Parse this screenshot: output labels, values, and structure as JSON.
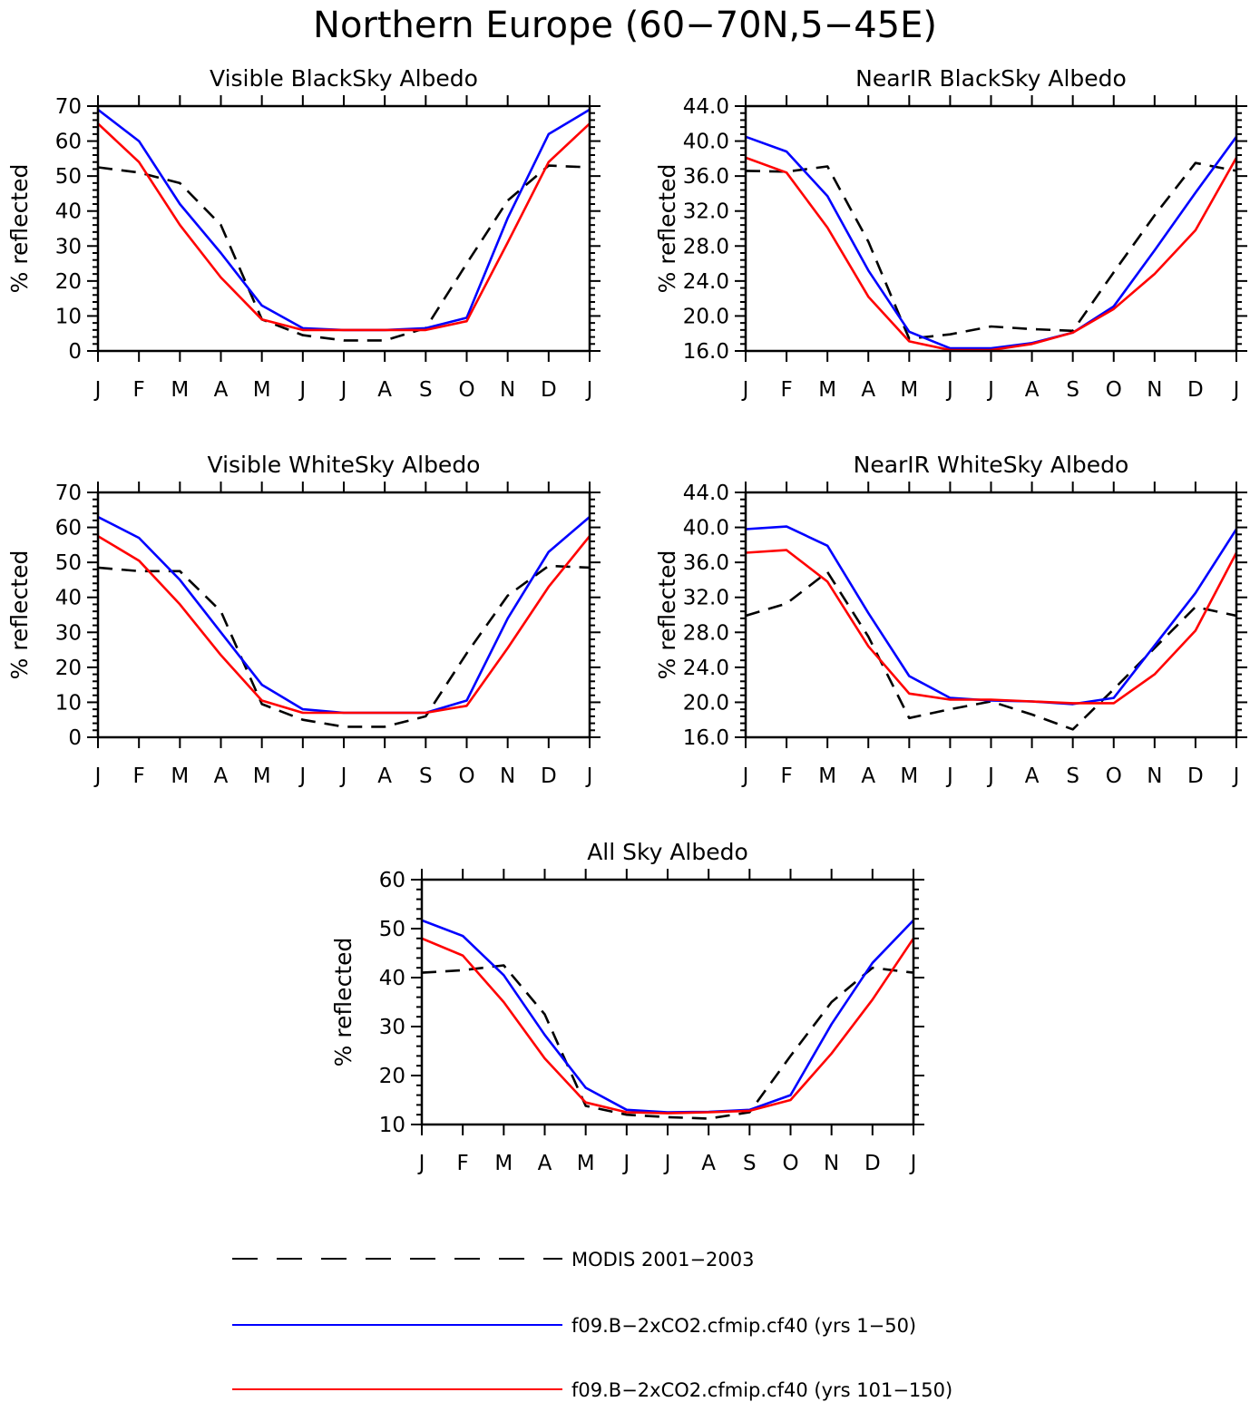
{
  "figure": {
    "title": "Northern Europe (60−70N,5−45E)"
  },
  "colors": {
    "modis": "#000000",
    "run1": "#0000ff",
    "run2": "#ff0000"
  },
  "legend": {
    "placement": "bottom",
    "items": [
      {
        "key": "modis",
        "label": "MODIS 2001−2003",
        "style": "dashed"
      },
      {
        "key": "run1",
        "label": "f09.B−2xCO2.cfmip.cf40 (yrs 1−50)",
        "style": "solid"
      },
      {
        "key": "run2",
        "label": "f09.B−2xCO2.cfmip.cf40 (yrs 101−150)",
        "style": "solid"
      }
    ]
  },
  "chart_data": [
    {
      "type": "line",
      "title": "Visible BlackSky Albedo",
      "ylabel": "% reflected",
      "ylim": [
        0,
        70
      ],
      "yticks": [
        "0",
        "10",
        "20",
        "30",
        "40",
        "50",
        "60",
        "70"
      ],
      "categories": [
        "J",
        "F",
        "M",
        "A",
        "M",
        "J",
        "J",
        "A",
        "S",
        "O",
        "N",
        "D",
        "J"
      ],
      "series": [
        {
          "key": "modis",
          "values": [
            52.5,
            51,
            48,
            36,
            9,
            4.5,
            3,
            3,
            6.5,
            25,
            43,
            53,
            52.5
          ]
        },
        {
          "key": "run1",
          "values": [
            69,
            60,
            42,
            28,
            13,
            6.5,
            6,
            6,
            6.5,
            9.5,
            38,
            62,
            69
          ]
        },
        {
          "key": "run2",
          "values": [
            65,
            54,
            36,
            21,
            9,
            6,
            6,
            6,
            6,
            8.5,
            31,
            54,
            65
          ]
        }
      ]
    },
    {
      "type": "line",
      "title": "NearIR BlackSky Albedo",
      "ylabel": "% reflected",
      "ylim": [
        16,
        44
      ],
      "yticks": [
        "16.0",
        "20.0",
        "24.0",
        "28.0",
        "32.0",
        "36.0",
        "40.0",
        "44.0"
      ],
      "categories": [
        "J",
        "F",
        "M",
        "A",
        "M",
        "J",
        "J",
        "A",
        "S",
        "O",
        "N",
        "D",
        "J"
      ],
      "series": [
        {
          "key": "modis",
          "values": [
            36.6,
            36.5,
            37.1,
            28.5,
            17.4,
            17.9,
            18.8,
            18.5,
            18.3,
            25,
            31.5,
            37.5,
            36.6
          ]
        },
        {
          "key": "run1",
          "values": [
            40.5,
            38.8,
            33.7,
            25.2,
            18.2,
            16.3,
            16.3,
            16.9,
            18.1,
            21.1,
            27.5,
            34.1,
            40.5
          ]
        },
        {
          "key": "run2",
          "values": [
            38.1,
            36.4,
            30.1,
            22.2,
            17.1,
            16.1,
            16.1,
            16.8,
            18.1,
            20.8,
            24.8,
            29.8,
            38.1
          ]
        }
      ]
    },
    {
      "type": "line",
      "title": "Visible WhiteSky Albedo",
      "ylabel": "% reflected",
      "ylim": [
        0,
        70
      ],
      "yticks": [
        "0",
        "10",
        "20",
        "30",
        "40",
        "50",
        "60",
        "70"
      ],
      "categories": [
        "J",
        "F",
        "M",
        "A",
        "M",
        "J",
        "J",
        "A",
        "S",
        "O",
        "N",
        "D",
        "J"
      ],
      "series": [
        {
          "key": "modis",
          "values": [
            48.5,
            47.5,
            47.5,
            36,
            9.5,
            5,
            3,
            3,
            6,
            24,
            40.5,
            49,
            48.5
          ]
        },
        {
          "key": "run1",
          "values": [
            63,
            57,
            45,
            30,
            15,
            8,
            7,
            7,
            7,
            10.5,
            34,
            53,
            63
          ]
        },
        {
          "key": "run2",
          "values": [
            57.5,
            50.5,
            38,
            23.5,
            10.5,
            7,
            7,
            7,
            7,
            9,
            25.5,
            43,
            57.5
          ]
        }
      ]
    },
    {
      "type": "line",
      "title": "NearIR WhiteSky Albedo",
      "ylabel": "% reflected",
      "ylim": [
        16,
        44
      ],
      "yticks": [
        "16.0",
        "20.0",
        "24.0",
        "28.0",
        "32.0",
        "36.0",
        "40.0",
        "44.0"
      ],
      "categories": [
        "J",
        "F",
        "M",
        "A",
        "M",
        "J",
        "J",
        "A",
        "S",
        "O",
        "N",
        "D",
        "J"
      ],
      "series": [
        {
          "key": "modis",
          "values": [
            29.9,
            31.3,
            34.9,
            27.5,
            18.2,
            19.2,
            20.1,
            18.6,
            16.9,
            21.5,
            26.2,
            30.9,
            29.9
          ]
        },
        {
          "key": "run1",
          "values": [
            39.8,
            40.1,
            37.9,
            30.2,
            23,
            20.5,
            20.2,
            20.1,
            19.8,
            20.5,
            26.5,
            32.5,
            39.8
          ]
        },
        {
          "key": "run2",
          "values": [
            37.1,
            37.4,
            33.8,
            26.4,
            21,
            20.3,
            20.3,
            20.1,
            19.9,
            19.9,
            23.2,
            28.2,
            37.1
          ]
        }
      ]
    },
    {
      "type": "line",
      "title": "All Sky Albedo",
      "ylabel": "% reflected",
      "ylim": [
        10,
        60
      ],
      "yticks": [
        "10",
        "20",
        "30",
        "40",
        "50",
        "60"
      ],
      "categories": [
        "J",
        "F",
        "M",
        "A",
        "M",
        "J",
        "J",
        "A",
        "S",
        "O",
        "N",
        "D",
        "J"
      ],
      "series": [
        {
          "key": "modis",
          "values": [
            41,
            41.5,
            42.5,
            32.5,
            13.8,
            12,
            11.5,
            11.2,
            12.5,
            24,
            35,
            42,
            41
          ]
        },
        {
          "key": "run1",
          "values": [
            51.7,
            48.5,
            40.5,
            28.3,
            17.5,
            13,
            12.5,
            12.6,
            13,
            16,
            30.5,
            43,
            51.7
          ]
        },
        {
          "key": "run2",
          "values": [
            48,
            44.5,
            35,
            23.5,
            14.5,
            12.5,
            12.3,
            12.5,
            12.8,
            15,
            24.5,
            35.5,
            48
          ]
        }
      ]
    }
  ]
}
